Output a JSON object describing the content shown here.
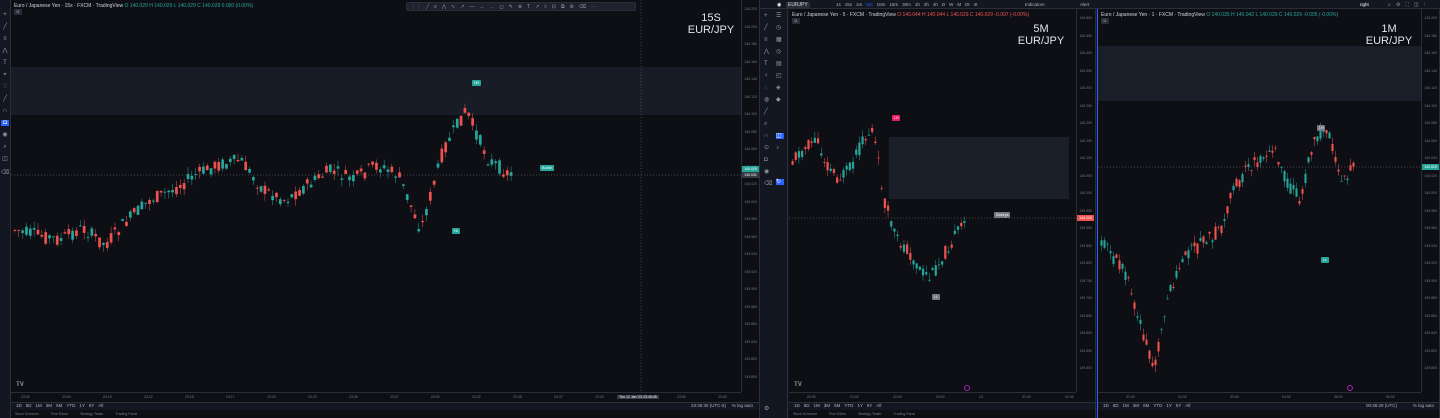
{
  "pane1": {
    "title": "Euro / Japanese Yen · 15s · FXCM · TradingView",
    "ohlc": "O 140.029 H 140.029 L 140.029 C 140.029 0.000 (0.00%)",
    "badge_counter": "11",
    "label_big_tf": "15S",
    "label_big_pair": "EUR/JPY",
    "price_ticks": [
      "140.220",
      "140.200",
      "140.180",
      "140.160",
      "140.140",
      "140.120",
      "140.100",
      "140.080",
      "140.060",
      "140.040",
      "140.020",
      "140.000",
      "139.980",
      "139.960",
      "139.940",
      "139.920",
      "139.900",
      "139.880",
      "139.860",
      "139.840",
      "139.820",
      "139.800"
    ],
    "last_price": "140.029",
    "last_price2": "140.031",
    "time_ticks": [
      "23:02",
      "23:03",
      "23:10",
      "23:12",
      "23:15",
      "23:17",
      "23:20",
      "23:22",
      "23:25",
      "23:27",
      "23:30",
      "23:32",
      "23:35",
      "23:37",
      "23:40",
      "23:42",
      "23:50",
      "23:52"
    ],
    "time_cursor": "Thu 12 Jan '23  23:45:45",
    "label_bullish": "Bullish",
    "label_top": "HH",
    "label_bottom": "HL",
    "ranges": [
      "1D",
      "5D",
      "1M",
      "3M",
      "6M",
      "YTD",
      "1Y",
      "5Y",
      "All"
    ],
    "clock": "23:36:30 (UTC-5)",
    "scale_opts": [
      "%",
      "log",
      "auto"
    ],
    "bottom_tabs": [
      "Stock Screener",
      "Pine Editor",
      "Strategy Tester",
      "Trading Panel"
    ]
  },
  "toolbar_top": {
    "symbol": "EURJPY",
    "intervals": [
      "1s",
      "15s",
      "1m",
      "5m",
      "10m",
      "15m",
      "30m",
      "1h",
      "2h",
      "4h",
      "D",
      "W",
      "M",
      "Dt",
      "4t"
    ],
    "indicators": "Indicators",
    "alert": "Alert",
    "layout": "right"
  },
  "pane2": {
    "title": "Euro / Japanese Yen · 5 · FXCM · TradingView",
    "ohlc": "O 140.044 H 140.044 L 140.029 C 140.029 -0.007 (-0.00%)",
    "badge_counter": "11",
    "label_big_tf": "5M",
    "label_big_pair": "EUR/JPY",
    "price_ticks": [
      "140.500",
      "140.450",
      "140.400",
      "140.350",
      "140.300",
      "140.250",
      "140.200",
      "140.150",
      "140.100",
      "140.050",
      "140.000",
      "139.950",
      "139.900",
      "139.850",
      "139.800",
      "139.750",
      "139.700",
      "139.650",
      "139.600",
      "139.550",
      "139.500"
    ],
    "last_price": "140.029",
    "time_ticks": [
      "20:00",
      "21:00",
      "22:00",
      "23:00",
      "13",
      "01:00",
      "02:00"
    ],
    "label_top": "LH",
    "label_bottom": "LL",
    "label_sweep": "Sweeps",
    "ranges": [
      "1D",
      "5D",
      "1M",
      "3M",
      "6M",
      "YTD",
      "1Y",
      "5Y",
      "All"
    ],
    "bottom_tabs": [
      "Stock Screener",
      "Pine Editor",
      "Strategy Tester",
      "Trading Panel"
    ]
  },
  "pane3": {
    "title": "Euro / Japanese Yen · 1 · FXCM · TradingView",
    "ohlc": "O 140.035 H 140.042 L 140.029 C 140.029 -0.005 (-0.00%)",
    "badge_counter": "11",
    "label_big_tf": "1M",
    "label_big_pair": "EUR/JPY",
    "price_ticks": [
      "140.200",
      "140.180",
      "140.160",
      "140.140",
      "140.120",
      "140.100",
      "140.080",
      "140.060",
      "140.040",
      "140.020",
      "140.000",
      "139.980",
      "139.960",
      "139.940",
      "139.920",
      "139.900",
      "139.880",
      "139.860",
      "139.840",
      "139.820",
      "139.800"
    ],
    "last_price": "140.029",
    "time_ticks": [
      "01:00",
      "02:00",
      "03:00",
      "04:00",
      "05:00",
      "06:00"
    ],
    "label_top": "LH",
    "label_bottom": "LL",
    "ranges": [
      "1D",
      "5D",
      "1M",
      "3M",
      "6M",
      "YTD",
      "1Y",
      "5Y",
      "All"
    ],
    "clock": "00:36:29 (UTC)",
    "scale_opts": [
      "%",
      "log",
      "auto"
    ]
  },
  "colors": {
    "bull": "#26a69a",
    "bear": "#ef5350",
    "bg": "#0d0f14",
    "zone": "#1e222d",
    "accent": "#2962ff"
  }
}
